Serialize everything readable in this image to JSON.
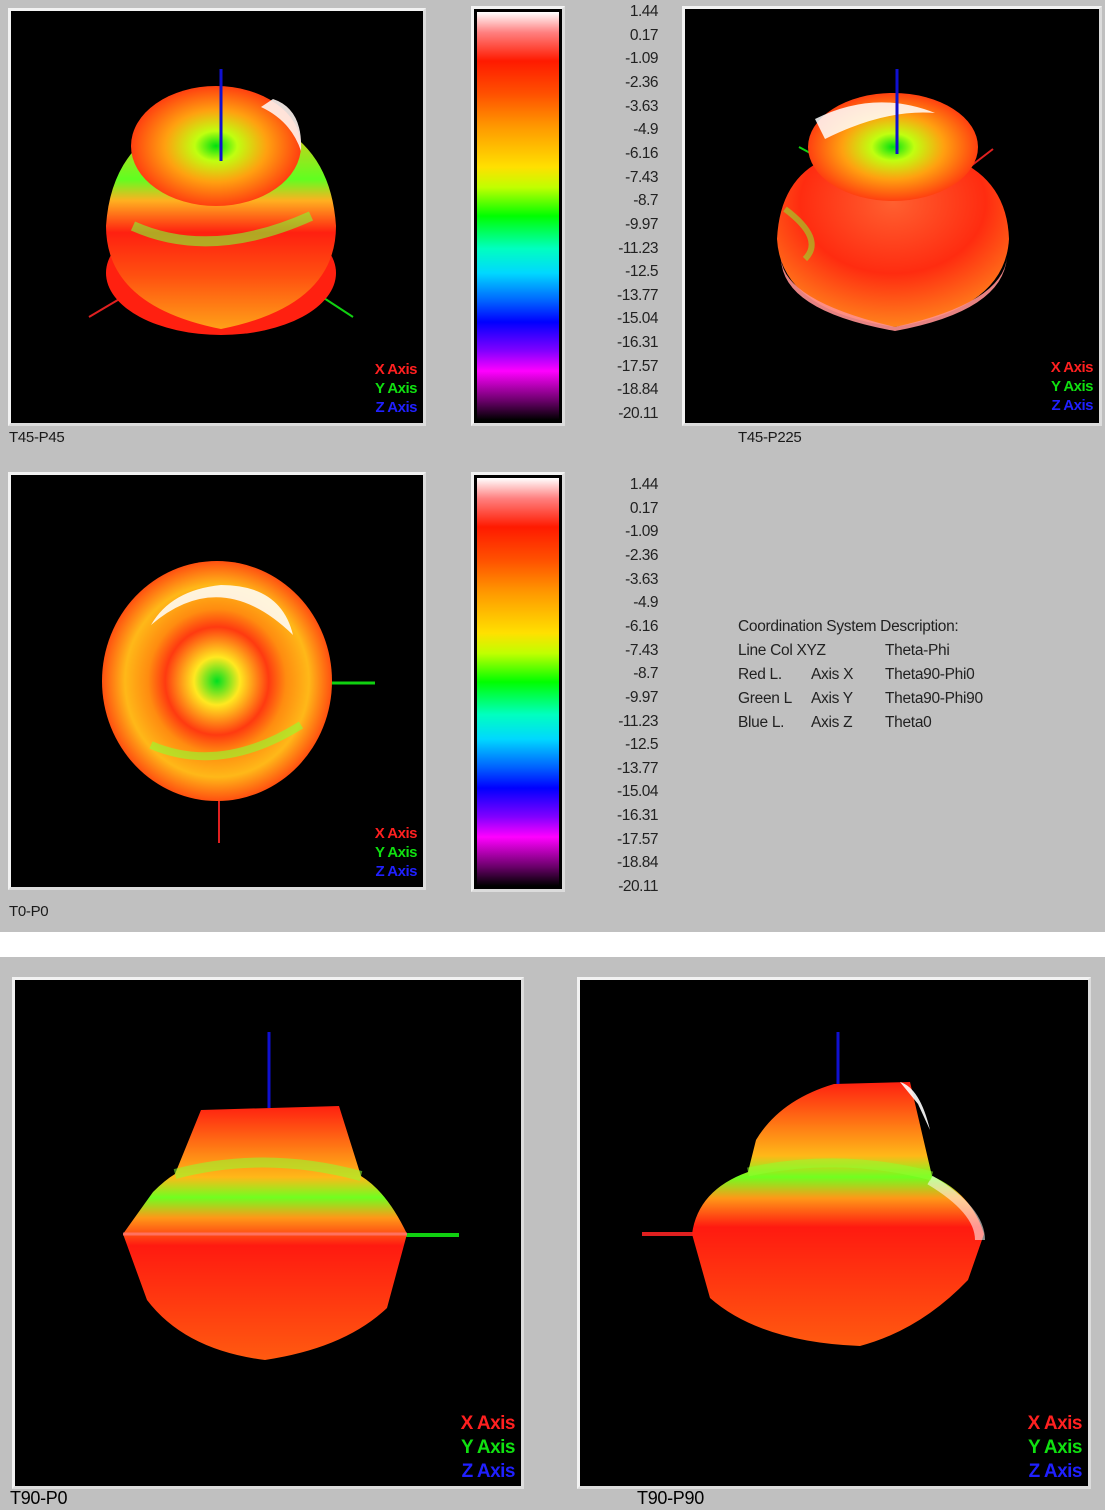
{
  "views": {
    "t45p45": {
      "caption": "T45-P45"
    },
    "t45p225": {
      "caption": "T45-P225"
    },
    "t0p0": {
      "caption": "T0-P0"
    },
    "t90p0": {
      "caption": "T90-P0"
    },
    "t90p90": {
      "caption": "T90-P90"
    }
  },
  "axis_legend": {
    "x": "X Axis",
    "y": "Y Axis",
    "z": "Z Axis"
  },
  "colorbar_ticks": [
    "1.44",
    "0.17",
    "-1.09",
    "-2.36",
    "-3.63",
    "-4.9",
    "-6.16",
    "-7.43",
    "-8.7",
    "-9.97",
    "-11.23",
    "-12.5",
    "-13.77",
    "-15.04",
    "-16.31",
    "-17.57",
    "-18.84",
    "-20.11"
  ],
  "coord_desc": {
    "title": "Coordination System Description:",
    "header": [
      "Line Col XYZ",
      "Theta-Phi"
    ],
    "rows": [
      [
        "Red L.",
        "Axis X",
        "Theta90-Phi0"
      ],
      [
        "Green L",
        "Axis Y",
        "Theta90-Phi90"
      ],
      [
        "Blue L.",
        "Axis Z",
        "Theta0"
      ]
    ]
  },
  "colors": {
    "x_axis": "#ff2020",
    "y_axis": "#10e010",
    "z_axis": "#2020ff"
  }
}
